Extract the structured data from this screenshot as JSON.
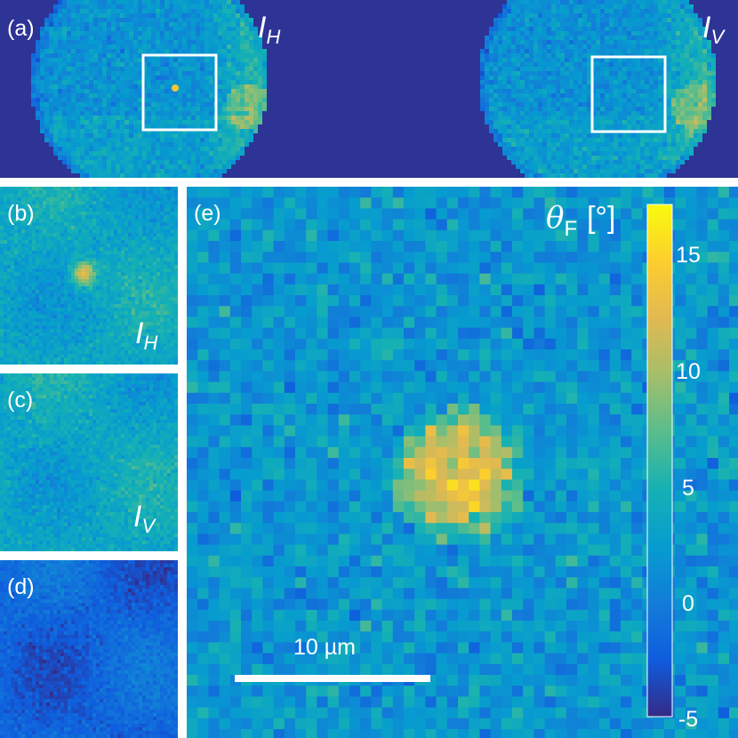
{
  "panels": {
    "a": {
      "label": "(a)",
      "left_image_label": {
        "letter": "I",
        "sub": "H"
      },
      "right_image_label": {
        "letter": "I",
        "sub": "V"
      }
    },
    "b": {
      "label": "(b)",
      "image_label": {
        "letter": "I",
        "sub": "H"
      }
    },
    "c": {
      "label": "(c)",
      "image_label": {
        "letter": "I",
        "sub": "V"
      }
    },
    "d": {
      "label": "(d)"
    },
    "e": {
      "label": "(e)",
      "colorbar": {
        "symbol": "θ",
        "subscript": "F",
        "unit": "[°]",
        "ticks": [
          "15",
          "10",
          "5",
          "0",
          "-5"
        ],
        "range": [
          -5,
          17
        ]
      },
      "scale_bar_label": "10 µm"
    }
  },
  "colors": {
    "background_dark": "#352a87",
    "colormap": "parula"
  }
}
